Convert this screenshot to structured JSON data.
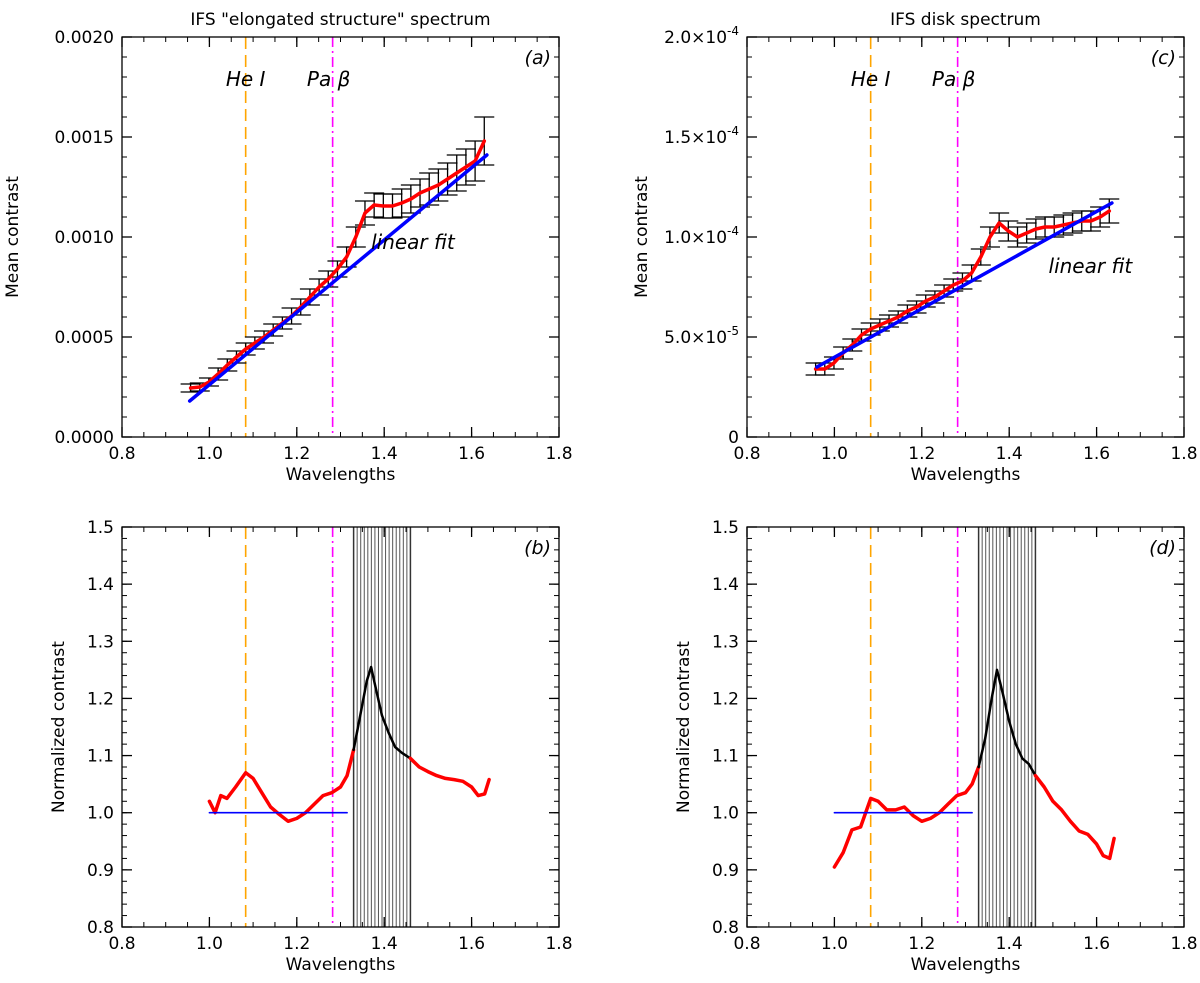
{
  "chart_data": [
    {
      "type": "line",
      "panel": "(a)",
      "title": "IFS \"elongated structure\" spectrum",
      "xlabel": "Wavelengths",
      "ylabel": "Mean contrast",
      "xlim": [
        0.8,
        1.8
      ],
      "ylim": [
        0.0,
        0.002
      ],
      "xticks": [
        "0.8",
        "1.0",
        "1.2",
        "1.4",
        "1.6",
        "1.8"
      ],
      "yticks": [
        "0.0000",
        "0.0005",
        "0.0010",
        "0.0015",
        "0.0020"
      ],
      "ytick_values": [
        0,
        0.0005,
        0.001,
        0.0015,
        0.002
      ],
      "vlines": [
        {
          "label": "He I",
          "x": 1.083,
          "color": "#ffa500",
          "style": "dashed"
        },
        {
          "label": "Pa β",
          "x": 1.282,
          "color": "#ff00ff",
          "style": "dashdot"
        }
      ],
      "annotations": [
        {
          "text": "linear fit",
          "x": 1.37,
          "y": 0.00094,
          "color": "#0000ff"
        }
      ],
      "series": [
        {
          "color": "#ff0000",
          "x": [
            0.957,
            0.978,
            0.999,
            1.02,
            1.041,
            1.062,
            1.083,
            1.104,
            1.125,
            1.146,
            1.167,
            1.188,
            1.209,
            1.23,
            1.251,
            1.272,
            1.293,
            1.314,
            1.335,
            1.356,
            1.377,
            1.398,
            1.419,
            1.44,
            1.461,
            1.482,
            1.503,
            1.524,
            1.545,
            1.566,
            1.587,
            1.608,
            1.629
          ],
          "y": [
            0.000245,
            0.00025,
            0.000275,
            0.000315,
            0.00036,
            0.0004,
            0.00044,
            0.00047,
            0.0005,
            0.000535,
            0.00057,
            0.000605,
            0.00065,
            0.0007,
            0.00075,
            0.00079,
            0.00084,
            0.0009,
            0.001,
            0.00112,
            0.00116,
            0.001155,
            0.001155,
            0.00117,
            0.00119,
            0.00122,
            0.00124,
            0.00126,
            0.00129,
            0.00132,
            0.00135,
            0.00138,
            0.00148
          ],
          "err": [
            2e-05,
            2e-05,
            2e-05,
            3e-05,
            3e-05,
            3e-05,
            3e-05,
            3e-05,
            3e-05,
            3e-05,
            3e-05,
            4e-05,
            4e-05,
            4e-05,
            4e-05,
            4e-05,
            4e-05,
            5e-05,
            5e-05,
            6e-05,
            6e-05,
            6e-05,
            6e-05,
            7e-05,
            7e-05,
            7e-05,
            8e-05,
            8e-05,
            8e-05,
            9e-05,
            9e-05,
            0.0001,
            0.00012
          ]
        },
        {
          "name": "linear fit",
          "color": "#0000ff",
          "x": [
            0.955,
            1.635
          ],
          "y": [
            0.00018,
            0.00141
          ]
        }
      ]
    },
    {
      "type": "line",
      "panel": "(b)",
      "title": "",
      "xlabel": "Wavelengths",
      "ylabel": "Normalized contrast",
      "xlim": [
        0.8,
        1.8
      ],
      "ylim": [
        0.8,
        1.5
      ],
      "xticks": [
        "0.8",
        "1.0",
        "1.2",
        "1.4",
        "1.6",
        "1.8"
      ],
      "yticks": [
        "0.8",
        "0.9",
        "1.0",
        "1.1",
        "1.2",
        "1.3",
        "1.4",
        "1.5"
      ],
      "ytick_values": [
        0.8,
        0.9,
        1.0,
        1.1,
        1.2,
        1.3,
        1.4,
        1.5
      ],
      "vlines": [
        {
          "label": "He I",
          "x": 1.083,
          "color": "#ffa500",
          "style": "dashed"
        },
        {
          "label": "Pa β",
          "x": 1.282,
          "color": "#ff00ff",
          "style": "dashdot"
        }
      ],
      "shaded_band": {
        "x0": 1.33,
        "x1": 1.46,
        "lines": 16
      },
      "series": [
        {
          "color": "#ff0000",
          "x": [
            1.0,
            1.013,
            1.026,
            1.04,
            1.06,
            1.083,
            1.1,
            1.12,
            1.14,
            1.16,
            1.18,
            1.2,
            1.22,
            1.24,
            1.26,
            1.28,
            1.3,
            1.315,
            1.33
          ],
          "y": [
            1.02,
            1.0,
            1.03,
            1.025,
            1.045,
            1.07,
            1.06,
            1.035,
            1.01,
            0.997,
            0.985,
            0.99,
            1.0,
            1.015,
            1.03,
            1.035,
            1.045,
            1.065,
            1.11
          ]
        },
        {
          "color": "#000000",
          "x": [
            1.33,
            1.345,
            1.36,
            1.37,
            1.38,
            1.395,
            1.41,
            1.425,
            1.44,
            1.46
          ],
          "y": [
            1.11,
            1.17,
            1.23,
            1.255,
            1.22,
            1.17,
            1.14,
            1.115,
            1.105,
            1.095
          ]
        },
        {
          "color": "#ff0000",
          "x": [
            1.46,
            1.48,
            1.5,
            1.52,
            1.54,
            1.56,
            1.58,
            1.6,
            1.615,
            1.63,
            1.64
          ],
          "y": [
            1.095,
            1.08,
            1.072,
            1.065,
            1.06,
            1.058,
            1.055,
            1.045,
            1.03,
            1.033,
            1.058
          ]
        },
        {
          "color": "#0000ff",
          "x": [
            1.0,
            1.315
          ],
          "y": [
            1.0,
            1.0
          ]
        }
      ]
    },
    {
      "type": "line",
      "panel": "(c)",
      "title": "IFS disk spectrum",
      "xlabel": "Wavelengths",
      "ylabel": "Mean contrast",
      "xlim": [
        0.8,
        1.8
      ],
      "ylim": [
        0,
        0.0002
      ],
      "xticks": [
        "0.8",
        "1.0",
        "1.2",
        "1.4",
        "1.6",
        "1.8"
      ],
      "yticks": [
        {
          "mant": "0",
          "exp": ""
        },
        {
          "mant": "5.0×10",
          "exp": "-5"
        },
        {
          "mant": "1.0×10",
          "exp": "-4"
        },
        {
          "mant": "1.5×10",
          "exp": "-4"
        },
        {
          "mant": "2.0×10",
          "exp": "-4"
        }
      ],
      "ytick_values": [
        0,
        5e-05,
        0.0001,
        0.00015,
        0.0002
      ],
      "vlines": [
        {
          "label": "He I",
          "x": 1.083,
          "color": "#ffa500",
          "style": "dashed"
        },
        {
          "label": "Pa β",
          "x": 1.282,
          "color": "#ff00ff",
          "style": "dashdot"
        }
      ],
      "annotations": [
        {
          "text": "linear fit",
          "x": 1.49,
          "y": 8.2e-05,
          "color": "#0000ff"
        }
      ],
      "series": [
        {
          "color": "#ff0000",
          "x": [
            0.957,
            0.978,
            0.999,
            1.02,
            1.041,
            1.062,
            1.083,
            1.104,
            1.125,
            1.146,
            1.167,
            1.188,
            1.209,
            1.23,
            1.251,
            1.272,
            1.293,
            1.314,
            1.335,
            1.356,
            1.377,
            1.398,
            1.419,
            1.44,
            1.461,
            1.482,
            1.503,
            1.524,
            1.545,
            1.566,
            1.587,
            1.608,
            1.629
          ],
          "y": [
            3.4e-05,
            3.4e-05,
            3.7e-05,
            4.2e-05,
            4.6e-05,
            5.1e-05,
            5.4e-05,
            5.6e-05,
            5.8e-05,
            6e-05,
            6.3e-05,
            6.5e-05,
            6.8e-05,
            7e-05,
            7.3e-05,
            7.6e-05,
            7.8e-05,
            8.2e-05,
            9e-05,
            0.0001,
            0.000107,
            0.000103,
            0.0001,
            0.000102,
            0.000104,
            0.000105,
            0.000105,
            0.000106,
            0.000107,
            0.000108,
            0.000108,
            0.00011,
            0.000113
          ],
          "err": [
            3e-06,
            3e-06,
            3e-06,
            3e-06,
            3e-06,
            3e-06,
            3e-06,
            3e-06,
            3e-06,
            3e-06,
            3e-06,
            3e-06,
            3e-06,
            3e-06,
            3e-06,
            3e-06,
            4e-06,
            4e-06,
            4e-06,
            5e-06,
            5e-06,
            5e-06,
            5e-06,
            5e-06,
            5e-06,
            5e-06,
            5e-06,
            5e-06,
            5e-06,
            5e-06,
            5e-06,
            5e-06,
            6e-06
          ]
        },
        {
          "name": "linear fit",
          "color": "#0000ff",
          "x": [
            0.96,
            1.635
          ],
          "y": [
            3.5e-05,
            0.000117
          ]
        }
      ]
    },
    {
      "type": "line",
      "panel": "(d)",
      "title": "",
      "xlabel": "Wavelengths",
      "ylabel": "Normalized contrast",
      "xlim": [
        0.8,
        1.8
      ],
      "ylim": [
        0.8,
        1.5
      ],
      "xticks": [
        "0.8",
        "1.0",
        "1.2",
        "1.4",
        "1.6",
        "1.8"
      ],
      "yticks": [
        "0.8",
        "0.9",
        "1.0",
        "1.1",
        "1.2",
        "1.3",
        "1.4",
        "1.5"
      ],
      "ytick_values": [
        0.8,
        0.9,
        1.0,
        1.1,
        1.2,
        1.3,
        1.4,
        1.5
      ],
      "vlines": [
        {
          "label": "He I",
          "x": 1.083,
          "color": "#ffa500",
          "style": "dashed"
        },
        {
          "label": "Pa β",
          "x": 1.282,
          "color": "#ff00ff",
          "style": "dashdot"
        }
      ],
      "shaded_band": {
        "x0": 1.33,
        "x1": 1.46,
        "lines": 16
      },
      "series": [
        {
          "color": "#ff0000",
          "x": [
            1.0,
            1.02,
            1.04,
            1.06,
            1.083,
            1.1,
            1.12,
            1.14,
            1.16,
            1.18,
            1.2,
            1.22,
            1.24,
            1.26,
            1.28,
            1.3,
            1.315,
            1.33
          ],
          "y": [
            0.905,
            0.93,
            0.97,
            0.975,
            1.025,
            1.02,
            1.005,
            1.005,
            1.01,
            0.995,
            0.985,
            0.99,
            1.0,
            1.015,
            1.03,
            1.035,
            1.05,
            1.08
          ],
          "_note_": ""
        },
        {
          "color": "#000000",
          "x": [
            1.33,
            1.345,
            1.36,
            1.372,
            1.385,
            1.4,
            1.415,
            1.43,
            1.445,
            1.46
          ],
          "y": [
            1.08,
            1.13,
            1.2,
            1.25,
            1.21,
            1.16,
            1.12,
            1.095,
            1.085,
            1.065
          ]
        },
        {
          "color": "#ff0000",
          "x": [
            1.46,
            1.48,
            1.5,
            1.52,
            1.54,
            1.56,
            1.58,
            1.6,
            1.615,
            1.63,
            1.64
          ],
          "y": [
            1.065,
            1.045,
            1.02,
            1.005,
            0.985,
            0.968,
            0.962,
            0.945,
            0.925,
            0.92,
            0.955
          ]
        },
        {
          "color": "#0000ff",
          "x": [
            1.0,
            1.315
          ],
          "y": [
            1.0,
            1.0
          ]
        }
      ]
    }
  ]
}
